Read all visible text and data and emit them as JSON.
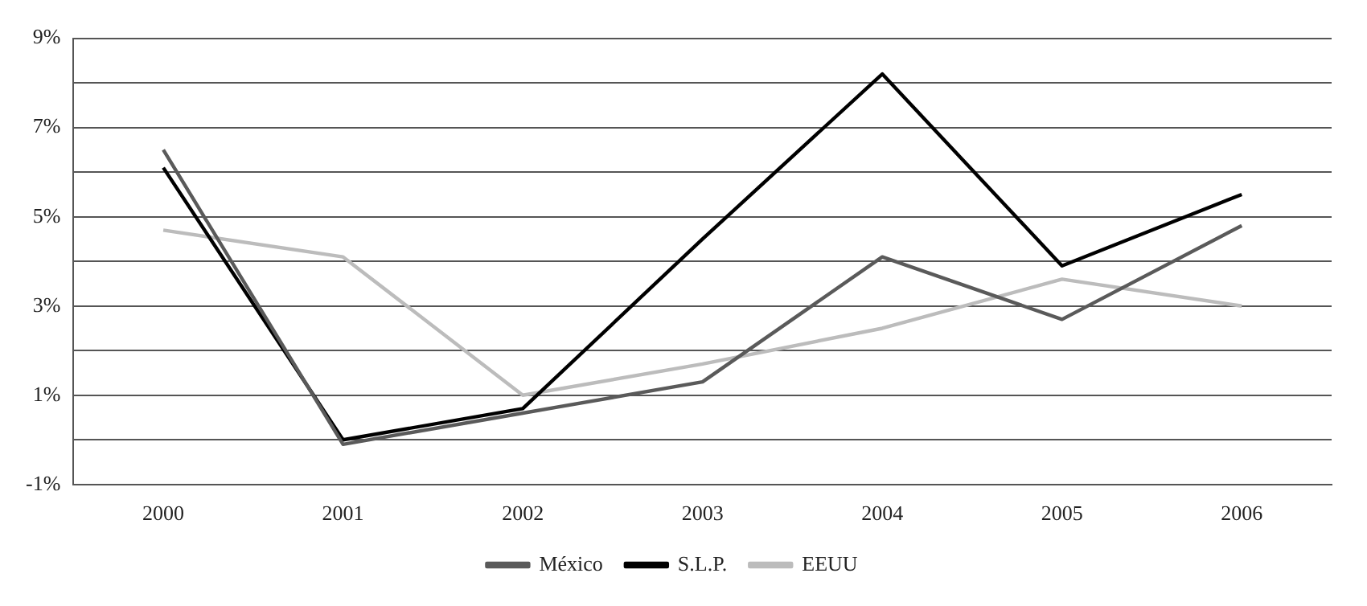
{
  "chart_data": {
    "type": "line",
    "categories": [
      "2000",
      "2001",
      "2002",
      "2003",
      "2004",
      "2005",
      "2006"
    ],
    "series": [
      {
        "name": "México",
        "color": "#5a5a5a",
        "values": [
          6.5,
          -0.1,
          0.6,
          1.3,
          4.1,
          2.7,
          4.8
        ]
      },
      {
        "name": "S.L.P.",
        "color": "#000000",
        "values": [
          6.1,
          0.0,
          0.7,
          4.5,
          8.2,
          3.9,
          5.5
        ]
      },
      {
        "name": "EEUU",
        "color": "#bcbcbc",
        "values": [
          4.7,
          4.1,
          1.0,
          1.7,
          2.5,
          3.6,
          3.0
        ]
      }
    ],
    "ylim": [
      -1,
      9
    ],
    "yticks": [
      {
        "value": -1,
        "label": "-1%"
      },
      {
        "value": 0,
        "label": null
      },
      {
        "value": 1,
        "label": "1%"
      },
      {
        "value": 2,
        "label": null
      },
      {
        "value": 3,
        "label": "3%"
      },
      {
        "value": 4,
        "label": null
      },
      {
        "value": 5,
        "label": "5%"
      },
      {
        "value": 6,
        "label": null
      },
      {
        "value": 7,
        "label": "7%"
      },
      {
        "value": 8,
        "label": null
      },
      {
        "value": 9,
        "label": "9%"
      }
    ],
    "grid": "y",
    "legend": "bottom",
    "marker": "none",
    "line_style": "solid"
  }
}
